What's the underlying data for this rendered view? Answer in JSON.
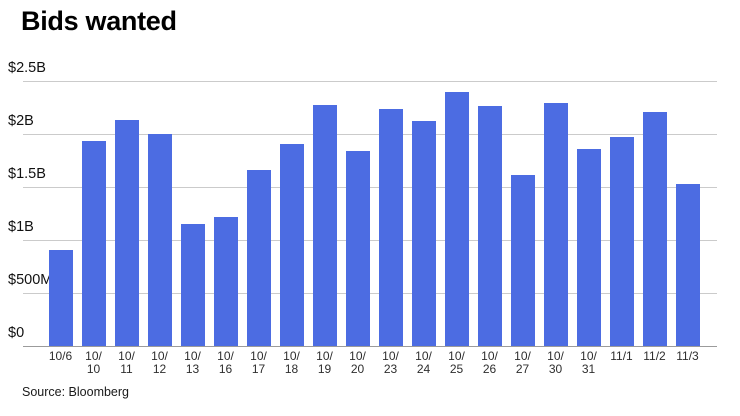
{
  "title": "Bids wanted",
  "source_note": "Source: Bloomberg",
  "chart_data": {
    "type": "bar",
    "title": "Bids wanted",
    "xlabel": "",
    "ylabel": "",
    "categories": [
      "10/6",
      "10/10",
      "10/11",
      "10/12",
      "10/13",
      "10/16",
      "10/17",
      "10/18",
      "10/19",
      "10/20",
      "10/23",
      "10/24",
      "10/25",
      "10/26",
      "10/27",
      "10/30",
      "10/31",
      "11/1",
      "11/2",
      "11/3"
    ],
    "x_tick_display": [
      [
        "10/6"
      ],
      [
        "10/",
        "10"
      ],
      [
        "10/",
        "11"
      ],
      [
        "10/",
        "12"
      ],
      [
        "10/",
        "13"
      ],
      [
        "10/",
        "16"
      ],
      [
        "10/",
        "17"
      ],
      [
        "10/",
        "18"
      ],
      [
        "10/",
        "19"
      ],
      [
        "10/",
        "20"
      ],
      [
        "10/",
        "23"
      ],
      [
        "10/",
        "24"
      ],
      [
        "10/",
        "25"
      ],
      [
        "10/",
        "26"
      ],
      [
        "10/",
        "27"
      ],
      [
        "10/",
        "30"
      ],
      [
        "10/",
        "31"
      ],
      [
        "11/1"
      ],
      [
        "11/2"
      ],
      [
        "11/3"
      ]
    ],
    "values": [
      0.91,
      1.93,
      2.13,
      2.0,
      1.15,
      1.22,
      1.66,
      1.91,
      2.27,
      1.84,
      2.24,
      2.12,
      2.4,
      2.26,
      1.61,
      2.29,
      1.86,
      1.97,
      2.21,
      1.53
    ],
    "values_unit": "billions USD",
    "ylim": [
      0,
      2.5
    ],
    "y_ticks": [
      {
        "label": "$2.5B",
        "value": 2.5
      },
      {
        "label": "$2B",
        "value": 2.0
      },
      {
        "label": "$1.5B",
        "value": 1.5
      },
      {
        "label": "$1B",
        "value": 1.0
      },
      {
        "label": "$500M",
        "value": 0.5
      },
      {
        "label": "$0",
        "value": 0.0
      }
    ],
    "grid": true,
    "legend": "none",
    "bar_color": "#4C6CE2",
    "grid_color": "#cbcbcb",
    "axis_color": "#9b9b9b",
    "background_color": "#ffffff",
    "source": "Source: Bloomberg"
  }
}
